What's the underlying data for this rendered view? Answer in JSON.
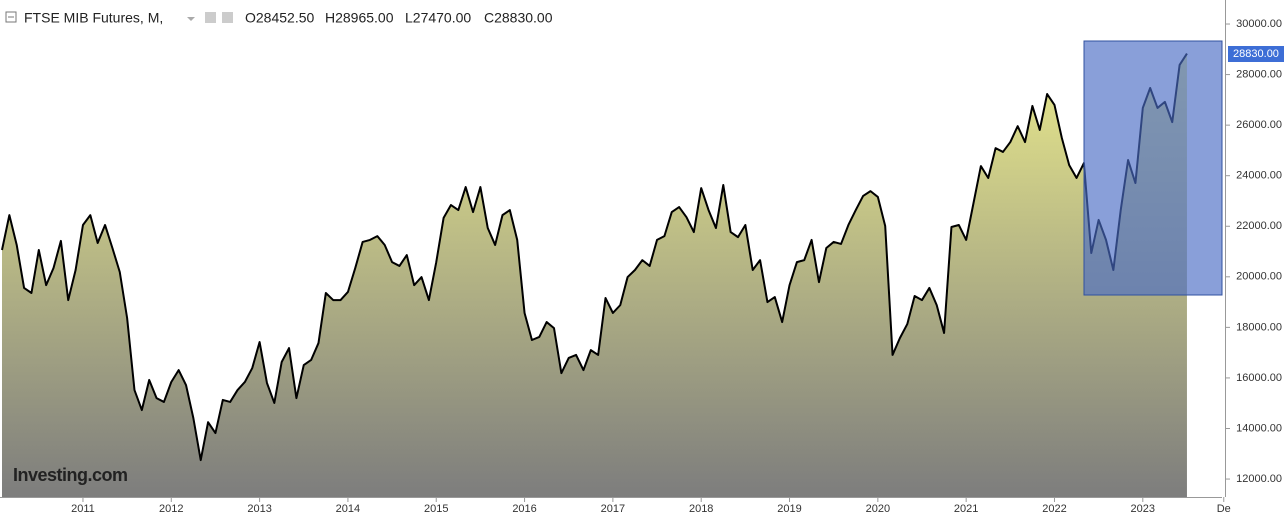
{
  "chart_data": {
    "type": "area",
    "title": "FTSE MIB Futures, M,",
    "annotations": [
      "O28452.50",
      "H28965.00",
      "L27470.00",
      "C28830.00"
    ],
    "price_label": "28830.00",
    "logo": "Investing.com",
    "categories": [
      null,
      null,
      null,
      null,
      null,
      null,
      null,
      null,
      null,
      null,
      null,
      "2011",
      null,
      null,
      null,
      null,
      null,
      null,
      null,
      null,
      null,
      null,
      null,
      "2012",
      null,
      null,
      null,
      null,
      null,
      null,
      null,
      null,
      null,
      null,
      null,
      "2013",
      null,
      null,
      null,
      null,
      null,
      null,
      null,
      null,
      null,
      null,
      null,
      "2014",
      null,
      null,
      null,
      null,
      null,
      null,
      null,
      null,
      null,
      null,
      null,
      "2015",
      null,
      null,
      null,
      null,
      null,
      null,
      null,
      null,
      null,
      null,
      null,
      "2016",
      null,
      null,
      null,
      null,
      null,
      null,
      null,
      null,
      null,
      null,
      null,
      "2017",
      null,
      null,
      null,
      null,
      null,
      null,
      null,
      null,
      null,
      null,
      null,
      "2018",
      null,
      null,
      null,
      null,
      null,
      null,
      null,
      null,
      null,
      null,
      null,
      "2019",
      null,
      null,
      null,
      null,
      null,
      null,
      null,
      null,
      null,
      null,
      null,
      "2020",
      null,
      null,
      null,
      null,
      null,
      null,
      null,
      null,
      null,
      null,
      null,
      "2021",
      null,
      null,
      null,
      null,
      null,
      null,
      null,
      null,
      null,
      null,
      null,
      "2022",
      null,
      null,
      null,
      null,
      null,
      null,
      null,
      null,
      null,
      null,
      null,
      "2023",
      null,
      null,
      null,
      null,
      null,
      null,
      null,
      null,
      null,
      null,
      "De"
    ],
    "values": [
      21060,
      22440,
      21260,
      19560,
      19360,
      21060,
      19670,
      20350,
      21420,
      19080,
      20270,
      22050,
      22440,
      21340,
      22050,
      21140,
      20190,
      18370,
      15520,
      14730,
      15920,
      15200,
      15050,
      15840,
      16310,
      15720,
      14410,
      12750,
      14250,
      13820,
      15130,
      15050,
      15520,
      15840,
      16390,
      17420,
      15800,
      15010,
      16630,
      17180,
      15200,
      16510,
      16710,
      17380,
      19360,
      19080,
      19080,
      19400,
      20350,
      21380,
      21460,
      21610,
      21260,
      20580,
      20430,
      20860,
      19670,
      19990,
      19080,
      20580,
      22330,
      22840,
      22640,
      23550,
      22560,
      23550,
      21930,
      21260,
      22440,
      22640,
      21460,
      18570,
      17500,
      17620,
      18210,
      17970,
      16190,
      16790,
      16910,
      16310,
      17100,
      16910,
      19160,
      18570,
      18880,
      19990,
      20270,
      20660,
      20430,
      21460,
      21610,
      22560,
      22760,
      22360,
      21770,
      23510,
      22640,
      21930,
      23630,
      21770,
      21570,
      22050,
      20270,
      20660,
      19000,
      19200,
      18210,
      19670,
      20580,
      20660,
      21460,
      19790,
      21140,
      21380,
      21300,
      22050,
      22640,
      23200,
      23390,
      23160,
      22010,
      16910,
      17580,
      18130,
      19240,
      19080,
      19560,
      18880,
      17780,
      21970,
      22050,
      21460,
      22920,
      24380,
      23910,
      25090,
      24940,
      25330,
      25960,
      25330,
      26760,
      25810,
      27230,
      26800,
      25490,
      24420,
      23910,
      24500,
      20940,
      22250,
      21460,
      20270,
      22640,
      24620,
      23710,
      26680,
      27470,
      26680,
      26920,
      26120,
      28380,
      28830,
      null,
      null,
      null,
      null,
      null
    ],
    "color": "#000000",
    "ylim": [
      11290,
      30950
    ],
    "yticks": [
      {
        "value": 12000,
        "label": "12000.00"
      },
      {
        "value": 14000,
        "label": "14000.00"
      },
      {
        "value": 16000,
        "label": "16000.00"
      },
      {
        "value": 18000,
        "label": "18000.00"
      },
      {
        "value": 20000,
        "label": "20000.00"
      },
      {
        "value": 22000,
        "label": "22000.00"
      },
      {
        "value": 24000,
        "label": "24000.00"
      },
      {
        "value": 26000,
        "label": "26000.00"
      },
      {
        "value": 28000,
        "label": "28000.00"
      },
      {
        "value": 30000,
        "label": "30000.00"
      }
    ],
    "grid": false
  }
}
